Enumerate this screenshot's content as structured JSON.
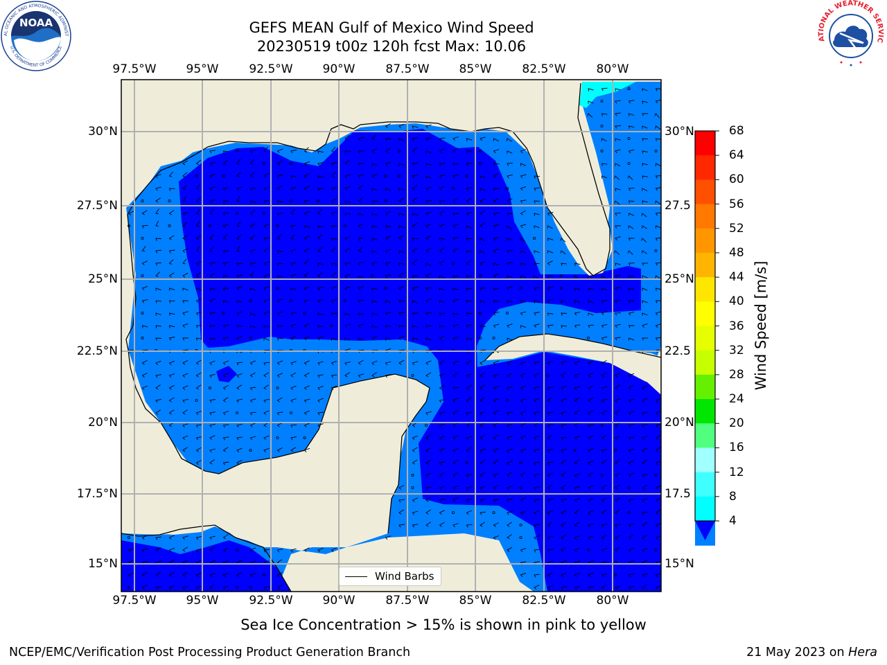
{
  "title": {
    "line1": "GEFS MEAN Gulf of Mexico Wind Speed",
    "line2": "20230519 t00z 120h fcst   Max: 10.06"
  },
  "map": {
    "lon_labels": [
      "97.5°W",
      "95°W",
      "92.5°W",
      "90°W",
      "87.5°W",
      "85°W",
      "82.5°W",
      "80°W"
    ],
    "lat_labels": [
      "30°N",
      "27.5°N",
      "25°N",
      "22.5°N",
      "20°N",
      "17.5°N",
      "15°N"
    ],
    "lat_labels_right": [
      "30°N",
      "27.5",
      "25°N",
      "22.5",
      "20°N",
      "17.5",
      "15°N"
    ],
    "colors": {
      "land": "#efedda",
      "wind_4_8": "#0080ff",
      "wind_below_4": "#0000ff",
      "wind_8_12": "#00ffff",
      "gridline": "#b0b0b0"
    },
    "legend_label": "Wind Barbs"
  },
  "colorbar": {
    "label": "Wind Speed [m/s]",
    "ticks": [
      "68",
      "64",
      "60",
      "56",
      "52",
      "48",
      "44",
      "40",
      "36",
      "32",
      "28",
      "24",
      "20",
      "16",
      "12",
      "8",
      "4"
    ],
    "colors": [
      "#ff0000",
      "#ff2800",
      "#ff5000",
      "#ff7800",
      "#ff9600",
      "#ffb400",
      "#ffe600",
      "#ffff00",
      "#e6ff00",
      "#c8ff00",
      "#64f000",
      "#00e600",
      "#50ff80",
      "#a0ffff",
      "#40ffff",
      "#00ffff",
      "#0080ff"
    ],
    "under_color": "#0000ff"
  },
  "caption": "Sea Ice Concentration > 15% is shown in pink to yellow",
  "footer": {
    "left": "NCEP/EMC/Verification Post Processing Product Generation Branch",
    "right_prefix": "21 May 2023 on ",
    "right_host": "Hera"
  },
  "logos": {
    "noaa_text": "NOAA",
    "noaa_ring": "NATIONAL OCEANIC AND ATMOSPHERIC ADMINISTRATION",
    "noaa_ring_bottom": "U.S. DEPARTMENT OF COMMERCE",
    "nws_ring": "NATIONAL WEATHER SERVICE"
  }
}
